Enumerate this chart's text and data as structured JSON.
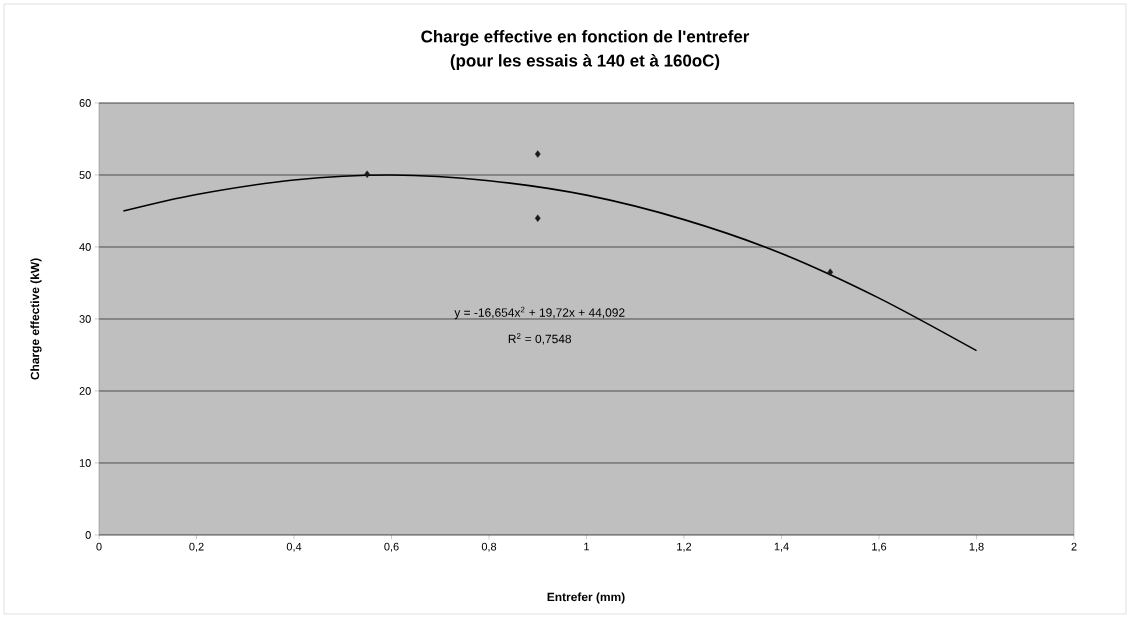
{
  "chart_data": {
    "type": "scatter",
    "title": "Charge effective en fonction de l'entrefer",
    "subtitle": "(pour les essais à 140 et à 160oC)",
    "xlabel": "Entrefer (mm)",
    "ylabel": "Charge effective (kW)",
    "xlim": [
      0,
      2
    ],
    "ylim": [
      0,
      60
    ],
    "xticks": [
      0,
      {
        "value": 0.2,
        "label": "0,2"
      },
      {
        "value": 0.4,
        "label": "0,4"
      },
      {
        "value": 0.6,
        "label": "0,6"
      },
      {
        "value": 0.8,
        "label": "0,8"
      },
      1,
      {
        "value": 1.2,
        "label": "1,2"
      },
      {
        "value": 1.4,
        "label": "1,4"
      },
      {
        "value": 1.6,
        "label": "1,6"
      },
      {
        "value": 1.8,
        "label": "1,8"
      },
      2
    ],
    "yticks": [
      0,
      10,
      20,
      30,
      40,
      50,
      60
    ],
    "grid": "y",
    "marker": "diamond",
    "series": [
      {
        "color": "#1a1a1a",
        "x": [
          0.55,
          0.9,
          0.9,
          1.5
        ],
        "values": [
          50.1,
          52.9,
          44.0,
          36.5
        ]
      },
      {
        "type": "line",
        "color": "#000000",
        "marker": "none",
        "x": [
          0.05,
          0.2,
          0.4,
          0.6,
          0.8,
          1.0,
          1.2,
          1.4,
          1.6,
          1.8
        ],
        "values": [
          45.0,
          47.3,
          49.3,
          50.0,
          49.2,
          47.2,
          43.8,
          39.1,
          32.9,
          25.6
        ]
      }
    ],
    "annotations": [
      "y = -16,654x$^{2}$ + 19,72x + 44,092",
      "R$^{2}$ = 0,7548"
    ]
  }
}
